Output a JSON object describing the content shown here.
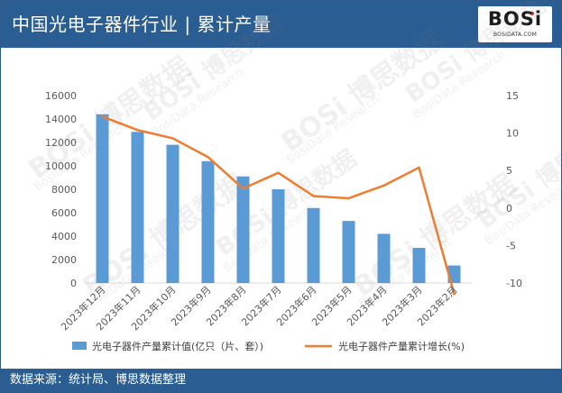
{
  "header": {
    "title": "中国光电子器件行业 | 累计产量"
  },
  "logo": {
    "text": "BOSi",
    "sub": "BOSIDATA.COM"
  },
  "watermark": {
    "brand": "BOSi",
    "cn": "博思数据",
    "en": "BosiData Research"
  },
  "footer": {
    "source": "数据来源：统计局、博思数据整理"
  },
  "colors": {
    "bar": "#5b9bd5",
    "line": "#ed7d31",
    "header": "#2a5d92"
  },
  "chart_data": {
    "type": "bar",
    "categories": [
      "2023年12月",
      "2023年11月",
      "2023年10月",
      "2023年9月",
      "2023年8月",
      "2023年7月",
      "2023年6月",
      "2023年5月",
      "2023年4月",
      "2023年3月",
      "2023年2月"
    ],
    "series": [
      {
        "name": "光电子器件产量累计值(亿只（片、套）)",
        "type": "bar",
        "axis": "left",
        "values": [
          14400,
          12900,
          11800,
          10400,
          9100,
          8000,
          6400,
          5300,
          4200,
          3000,
          1500
        ]
      },
      {
        "name": "光电子器件产量累计增长(%)",
        "type": "line",
        "axis": "right",
        "values": [
          12.2,
          10.4,
          9.3,
          6.8,
          2.6,
          4.7,
          1.6,
          1.3,
          3.0,
          5.4,
          -11.5
        ]
      }
    ],
    "ylim_left": [
      0,
      16000
    ],
    "yticks_left": [
      0,
      2000,
      4000,
      6000,
      8000,
      10000,
      12000,
      14000,
      16000
    ],
    "ylim_right": [
      -10,
      15
    ],
    "yticks_right": [
      -10,
      -5,
      0,
      5,
      10,
      15
    ],
    "grid": false,
    "legend": "bottom"
  }
}
